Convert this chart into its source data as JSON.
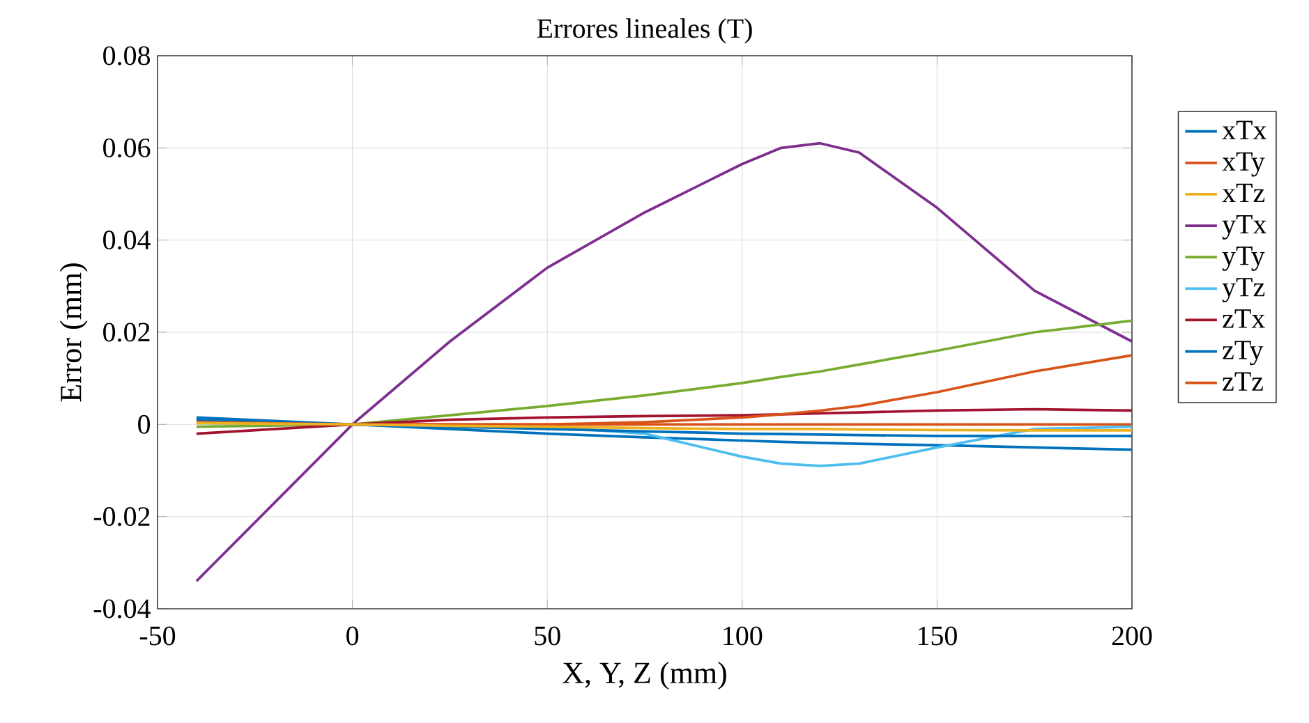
{
  "chart_data": {
    "type": "line",
    "title": "Errores lineales (T)",
    "xlabel": "X, Y, Z (mm)",
    "ylabel": "Error (mm)",
    "x": [
      -40,
      0,
      25,
      50,
      75,
      100,
      110,
      120,
      130,
      150,
      175,
      200
    ],
    "series": [
      {
        "name": "xTx",
        "color": "#0072bd",
        "values": [
          0.0015,
          0,
          -0.001,
          -0.002,
          -0.0028,
          -0.0035,
          -0.0038,
          -0.004,
          -0.0042,
          -0.0045,
          -0.005,
          -0.0055
        ]
      },
      {
        "name": "xTy",
        "color": "#d95319",
        "values": [
          0.0008,
          0,
          0,
          0,
          0,
          0,
          0,
          0,
          0,
          0,
          0,
          0
        ]
      },
      {
        "name": "xTz",
        "color": "#edb120",
        "values": [
          0.0003,
          0,
          -0.0003,
          -0.0005,
          -0.0008,
          -0.001,
          -0.001,
          -0.001,
          -0.0011,
          -0.0012,
          -0.0013,
          -0.0013
        ]
      },
      {
        "name": "yTx",
        "color": "#7e2f8e",
        "values": [
          -0.034,
          0,
          0.018,
          0.034,
          0.046,
          0.0565,
          0.06,
          0.061,
          0.059,
          0.047,
          0.029,
          0.018
        ]
      },
      {
        "name": "yTy",
        "color": "#77ac30",
        "values": [
          -0.0005,
          0,
          0.002,
          0.004,
          0.0063,
          0.009,
          0.0103,
          0.0115,
          0.013,
          0.016,
          0.02,
          0.0225
        ]
      },
      {
        "name": "yTz",
        "color": "#4dbeee",
        "values": [
          0.0003,
          0,
          -0.0002,
          -0.0005,
          -0.002,
          -0.007,
          -0.0085,
          -0.009,
          -0.0085,
          -0.005,
          -0.001,
          -0.0005
        ]
      },
      {
        "name": "zTx",
        "color": "#a2142f",
        "values": [
          -0.002,
          0,
          0.001,
          0.0015,
          0.0018,
          0.002,
          0.0022,
          0.0024,
          0.0026,
          0.003,
          0.0033,
          0.003
        ]
      },
      {
        "name": "zTy",
        "color": "#0072bd",
        "values": [
          0.001,
          0,
          -0.0005,
          -0.001,
          -0.0015,
          -0.002,
          -0.0021,
          -0.0022,
          -0.0023,
          -0.0025,
          -0.0025,
          -0.0025
        ]
      },
      {
        "name": "zTz",
        "color": "#d95319",
        "values": [
          0.0005,
          0,
          0,
          0,
          0.0005,
          0.0015,
          0.0022,
          0.003,
          0.004,
          0.007,
          0.0115,
          0.015
        ]
      }
    ],
    "xlim": [
      -50,
      200
    ],
    "ylim": [
      -0.04,
      0.08
    ],
    "xticks": [
      -50,
      0,
      50,
      100,
      150,
      200
    ],
    "yticks": [
      {
        "value": -0.04,
        "label": "-0.04"
      },
      {
        "value": -0.02,
        "label": "-0.02"
      },
      0,
      {
        "value": 0.02,
        "label": "0.02"
      },
      {
        "value": 0.04,
        "label": "0.04"
      },
      {
        "value": 0.06,
        "label": "0.06"
      },
      {
        "value": 0.08,
        "label": "0.08"
      }
    ],
    "grid": true,
    "legend": "right",
    "marker": "none",
    "line_style": "solid"
  }
}
